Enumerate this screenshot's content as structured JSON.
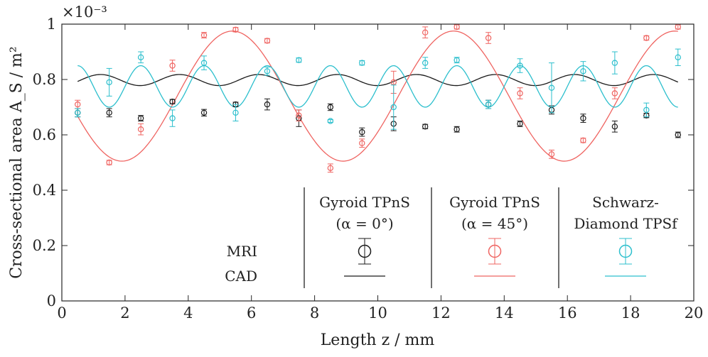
{
  "chart_data": {
    "type": "scatter",
    "title": "",
    "xlabel": "Length z / mm",
    "ylabel": "Cross-sectional area A_S / m²",
    "y_exponent_label": "×10⁻³",
    "xlim": [
      0,
      20
    ],
    "ylim": [
      0,
      1
    ],
    "x_ticks": [
      "0",
      "2",
      "4",
      "6",
      "8",
      "10",
      "12",
      "14",
      "16",
      "18",
      "20"
    ],
    "y_ticks": [
      "0",
      "0.2",
      "0.4",
      "0.6",
      "0.8",
      "1"
    ],
    "legend": {
      "row_labels": [
        "MRI",
        "CAD"
      ],
      "column_headers": [
        [
          "Gyroid TPnS",
          "(α = 0°)"
        ],
        [
          "Gyroid TPnS",
          "(α = 45°)"
        ],
        [
          "Schwarz-",
          "Diamond TPSf"
        ]
      ]
    },
    "series": [
      {
        "name": "Gyroid TPnS (α = 0°)",
        "color": "#1a1a1a",
        "mri": {
          "x": [
            0.5,
            1.5,
            2.5,
            3.5,
            4.5,
            5.5,
            6.5,
            7.5,
            8.5,
            9.5,
            10.5,
            11.5,
            12.5,
            13.5,
            14.5,
            15.5,
            16.5,
            17.5,
            18.5,
            19.5
          ],
          "y": [
            0.68,
            0.68,
            0.66,
            0.72,
            0.68,
            0.71,
            0.71,
            0.66,
            0.7,
            0.61,
            0.64,
            0.63,
            0.62,
            0.71,
            0.64,
            0.69,
            0.66,
            0.63,
            0.67,
            0.6
          ],
          "err": [
            0.015,
            0.015,
            0.01,
            0.008,
            0.012,
            0.008,
            0.02,
            0.03,
            0.012,
            0.015,
            0.025,
            0.008,
            0.01,
            0.015,
            0.01,
            0.015,
            0.015,
            0.02,
            0.008,
            0.01
          ]
        },
        "cad": {
          "type": "wave",
          "base": 0.798,
          "amplitude": 0.02,
          "period": 2.5
        }
      },
      {
        "name": "Gyroid TPnS (α = 45°)",
        "color": "#ef6461",
        "mri": {
          "x": [
            0.5,
            1.5,
            2.5,
            3.5,
            4.5,
            5.5,
            6.5,
            7.5,
            8.5,
            9.5,
            10.5,
            11.5,
            12.5,
            13.5,
            14.5,
            15.5,
            16.5,
            17.5,
            18.5,
            19.5
          ],
          "y": [
            0.71,
            0.5,
            0.62,
            0.85,
            0.96,
            0.98,
            0.94,
            0.67,
            0.48,
            0.57,
            0.79,
            0.97,
            0.99,
            0.95,
            0.75,
            0.53,
            0.58,
            0.75,
            0.95,
            0.99
          ],
          "err": [
            0.015,
            0.008,
            0.02,
            0.02,
            0.01,
            0.008,
            0.008,
            0.02,
            0.015,
            0.015,
            0.04,
            0.02,
            0.008,
            0.02,
            0.02,
            0.015,
            0.008,
            0.02,
            0.008,
            0.008
          ]
        },
        "cad": {
          "type": "wave",
          "base": 0.74,
          "amplitude": 0.235,
          "period": 7.0
        }
      },
      {
        "name": "Schwarz-Diamond TPSf",
        "color": "#2cbfcd",
        "mri": {
          "x": [
            0.5,
            1.5,
            2.5,
            3.5,
            4.5,
            5.5,
            6.5,
            7.5,
            8.5,
            9.5,
            10.5,
            11.5,
            12.5,
            13.5,
            14.5,
            15.5,
            16.5,
            17.5,
            18.5,
            19.5
          ],
          "y": [
            0.68,
            0.79,
            0.88,
            0.66,
            0.86,
            0.68,
            0.83,
            0.87,
            0.65,
            0.86,
            0.7,
            0.86,
            0.87,
            0.71,
            0.85,
            0.77,
            0.83,
            0.86,
            0.69,
            0.88
          ],
          "err": [
            0.015,
            0.05,
            0.02,
            0.03,
            0.025,
            0.03,
            0.015,
            0.008,
            0.005,
            0.008,
            0.08,
            0.02,
            0.01,
            0.015,
            0.025,
            0.09,
            0.035,
            0.04,
            0.025,
            0.03
          ]
        },
        "cad": {
          "type": "wave",
          "base": 0.775,
          "amplitude": 0.075,
          "period": 2.0
        }
      }
    ]
  }
}
